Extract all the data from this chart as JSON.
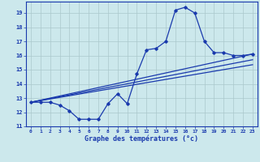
{
  "background_color": "#cce8ec",
  "grid_color": "#aac8cc",
  "line_color": "#1a3aad",
  "marker_style": "D",
  "marker_size": 1.8,
  "line_width": 0.9,
  "xlabel": "Graphe des températures (°c)",
  "xlim": [
    -0.5,
    23.5
  ],
  "ylim": [
    11,
    19.8
  ],
  "yticks": [
    11,
    12,
    13,
    14,
    15,
    16,
    17,
    18,
    19
  ],
  "xticks": [
    0,
    1,
    2,
    3,
    4,
    5,
    6,
    7,
    8,
    9,
    10,
    11,
    12,
    13,
    14,
    15,
    16,
    17,
    18,
    19,
    20,
    21,
    22,
    23
  ],
  "curve1_x": [
    0,
    1,
    2,
    3,
    4,
    5,
    6,
    7,
    8,
    9,
    10,
    11,
    12,
    13,
    14,
    15,
    16,
    17,
    18,
    19,
    20,
    21,
    22,
    23
  ],
  "curve1_y": [
    12.7,
    12.7,
    12.7,
    12.5,
    12.1,
    11.5,
    11.5,
    11.5,
    12.6,
    13.3,
    12.6,
    14.7,
    16.4,
    16.5,
    17.0,
    19.2,
    19.4,
    19.0,
    17.0,
    16.2,
    16.2,
    16.0,
    16.0,
    16.1
  ],
  "line1_x": [
    0,
    23
  ],
  "line1_y": [
    12.7,
    16.1
  ],
  "line2_x": [
    0,
    23
  ],
  "line2_y": [
    12.7,
    15.7
  ],
  "line3_x": [
    0,
    23
  ],
  "line3_y": [
    12.7,
    15.35
  ]
}
